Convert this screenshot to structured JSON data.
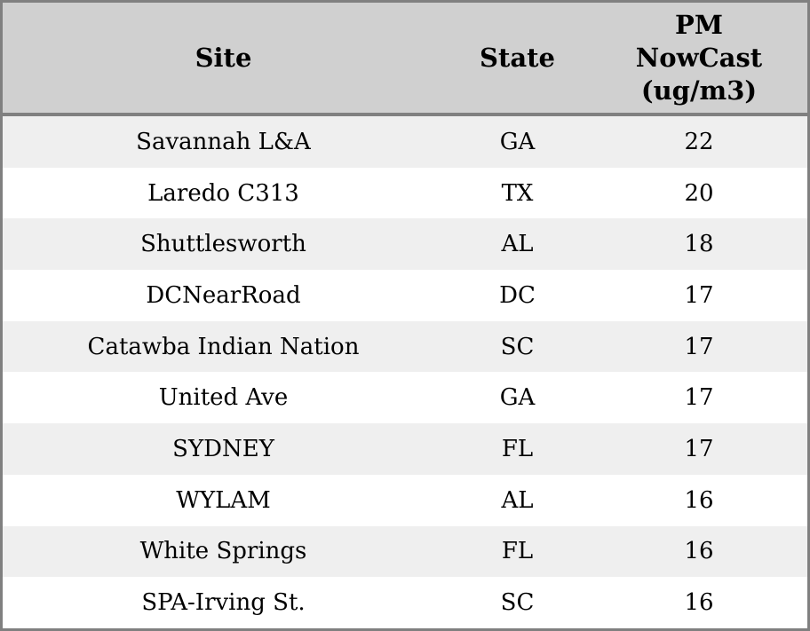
{
  "chart_data": {
    "type": "table",
    "columns": [
      {
        "key": "site",
        "label": "Site"
      },
      {
        "key": "state",
        "label": "State"
      },
      {
        "key": "pm_nowcast_ugm3",
        "label": "PM\nNowCast\n(ug/m3)"
      }
    ],
    "rows": [
      [
        "Savannah L&A",
        "GA",
        22
      ],
      [
        "Laredo C313",
        "TX",
        20
      ],
      [
        "Shuttlesworth",
        "AL",
        18
      ],
      [
        "DCNearRoad",
        "DC",
        17
      ],
      [
        "Catawba Indian Nation",
        "SC",
        17
      ],
      [
        "United Ave",
        "GA",
        17
      ],
      [
        "SYDNEY",
        "FL",
        17
      ],
      [
        "WYLAM",
        "AL",
        16
      ],
      [
        "White Springs",
        "FL",
        16
      ],
      [
        "SPA-Irving St.",
        "SC",
        16
      ]
    ]
  },
  "colors": {
    "header_bg": "#d0d0d0",
    "row_stripe_bg": "#efefef",
    "row_bg": "#ffffff",
    "border": "#808080",
    "text": "#000000"
  }
}
